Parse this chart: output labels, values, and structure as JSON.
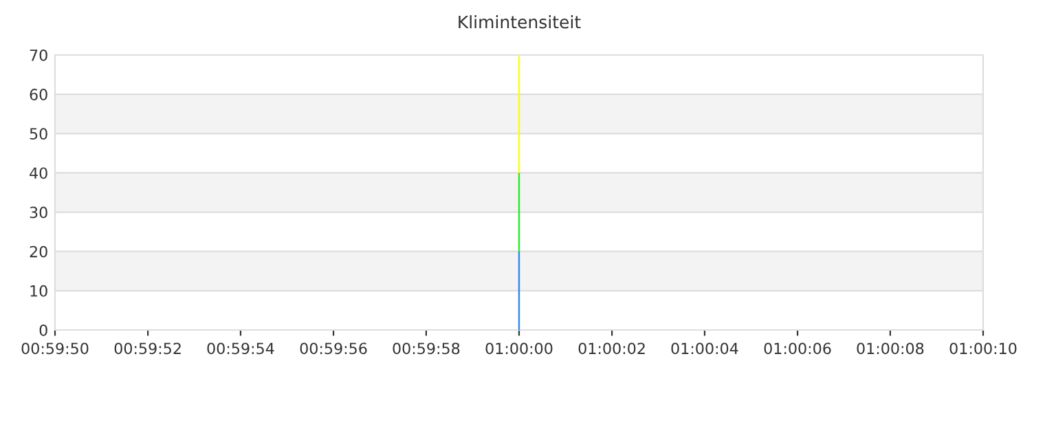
{
  "chart_data": {
    "type": "bar",
    "title": "Klimintensiteit",
    "stacked": true,
    "x": [
      1.0
    ],
    "series": [
      {
        "color": "#2b88f0",
        "values": [
          20
        ]
      },
      {
        "color": "#22ee22",
        "values": [
          20
        ]
      },
      {
        "color": "#ffff00",
        "values": [
          30
        ]
      }
    ],
    "xlim": [
      0.997222,
      1.002778
    ],
    "xticks": [
      {
        "value": 0.997222,
        "label": "00:59:50"
      },
      {
        "value": 0.997778,
        "label": "00:59:52"
      },
      {
        "value": 0.998333,
        "label": "00:59:54"
      },
      {
        "value": 0.998889,
        "label": "00:59:56"
      },
      {
        "value": 0.999444,
        "label": "00:59:58"
      },
      {
        "value": 1.0,
        "label": "01:00:00"
      },
      {
        "value": 1.000556,
        "label": "01:00:02"
      },
      {
        "value": 1.001111,
        "label": "01:00:04"
      },
      {
        "value": 1.001667,
        "label": "01:00:06"
      },
      {
        "value": 1.002222,
        "label": "01:00:08"
      },
      {
        "value": 1.002778,
        "label": "01:00:10"
      }
    ],
    "ylim": [
      0,
      70
    ],
    "yticks": [
      0,
      10,
      20,
      30,
      40,
      50,
      60,
      70
    ],
    "grid": "y",
    "bands": [
      {
        "axis": "y",
        "from": 10,
        "to": 20,
        "color": "#f3f3f3"
      },
      {
        "axis": "y",
        "from": 30,
        "to": 40,
        "color": "#f3f3f3"
      },
      {
        "axis": "y",
        "from": 50,
        "to": 60,
        "color": "#f3f3f3"
      }
    ]
  }
}
